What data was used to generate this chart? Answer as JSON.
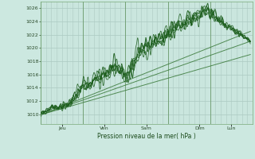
{
  "bg_color": "#cce8e0",
  "grid_color_major": "#aac8c0",
  "grid_color_minor": "#bcd8d0",
  "line_color": "#1a5c1a",
  "trend_line_color": "#3a7a3a",
  "ylabel": "Pression niveau de la mer( hPa )",
  "ylim": [
    1008.5,
    1027.0
  ],
  "yticks": [
    1010,
    1012,
    1014,
    1016,
    1018,
    1020,
    1022,
    1024,
    1026
  ],
  "x_day_labels": [
    "Jeu",
    "Ven",
    "Sam",
    "Dim",
    "Lun"
  ],
  "x_day_positions": [
    0.5,
    1.5,
    2.5,
    3.75,
    4.5
  ],
  "xlim": [
    0,
    5.0
  ],
  "total_days": 5.0,
  "n_points": 600
}
